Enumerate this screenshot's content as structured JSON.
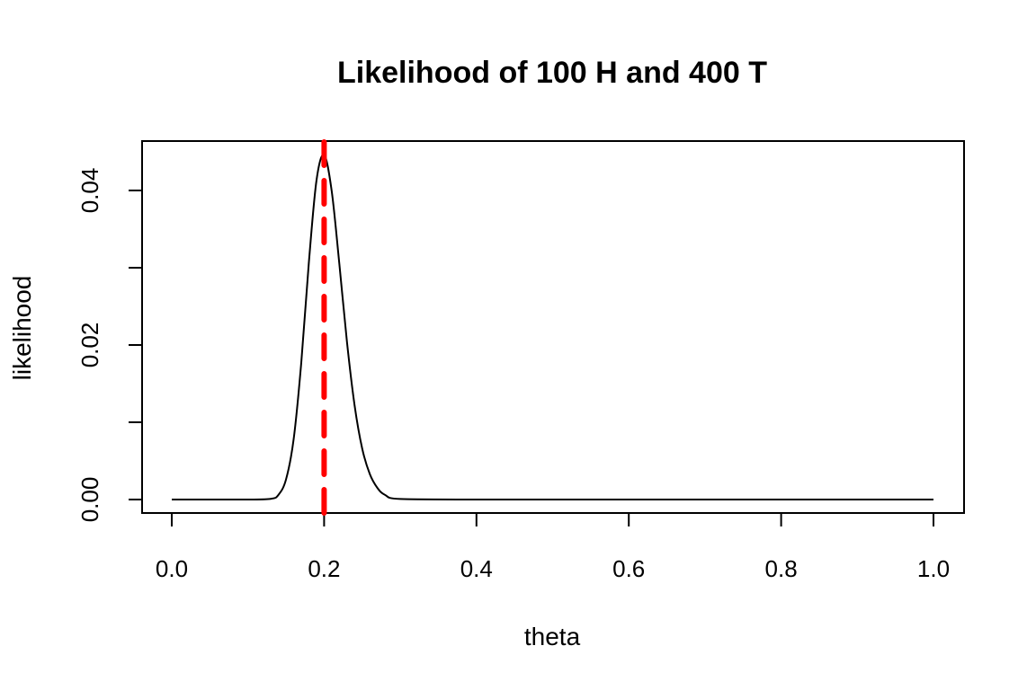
{
  "chart_data": {
    "type": "line",
    "title": "Likelihood of 100 H and 400 T",
    "xlabel": "theta",
    "ylabel": "likelihood",
    "xlim": [
      0.0,
      1.0
    ],
    "ylim": [
      0.0,
      0.045
    ],
    "x_ticks": [
      "0.0",
      "0.2",
      "0.4",
      "0.6",
      "0.8",
      "1.0"
    ],
    "y_ticks": [
      "0.00",
      "0.02",
      "0.04"
    ],
    "y_minor_ticks": [
      0.01,
      0.03
    ],
    "grid": false,
    "series": [
      {
        "x": [
          0.0,
          0.05,
          0.1,
          0.13,
          0.14,
          0.15,
          0.16,
          0.17,
          0.18,
          0.19,
          0.2,
          0.21,
          0.22,
          0.23,
          0.24,
          0.25,
          0.26,
          0.27,
          0.28,
          0.3,
          0.4,
          0.5,
          0.6,
          0.7,
          0.8,
          0.9,
          1.0
        ],
        "y": [
          0.0,
          0.0,
          0.0,
          9e-05,
          0.0006,
          0.0026,
          0.0078,
          0.0177,
          0.0307,
          0.0413,
          0.0446,
          0.0399,
          0.0305,
          0.0204,
          0.0122,
          0.0066,
          0.0033,
          0.0015,
          0.0006,
          7e-05,
          0.0,
          0.0,
          0.0,
          0.0,
          0.0,
          0.0,
          0.0
        ],
        "color": "#000000",
        "style": "solid"
      }
    ],
    "reference_line": {
      "x": 0.2,
      "orientation": "vertical",
      "color": "#ff0000",
      "style": "dashed"
    }
  }
}
